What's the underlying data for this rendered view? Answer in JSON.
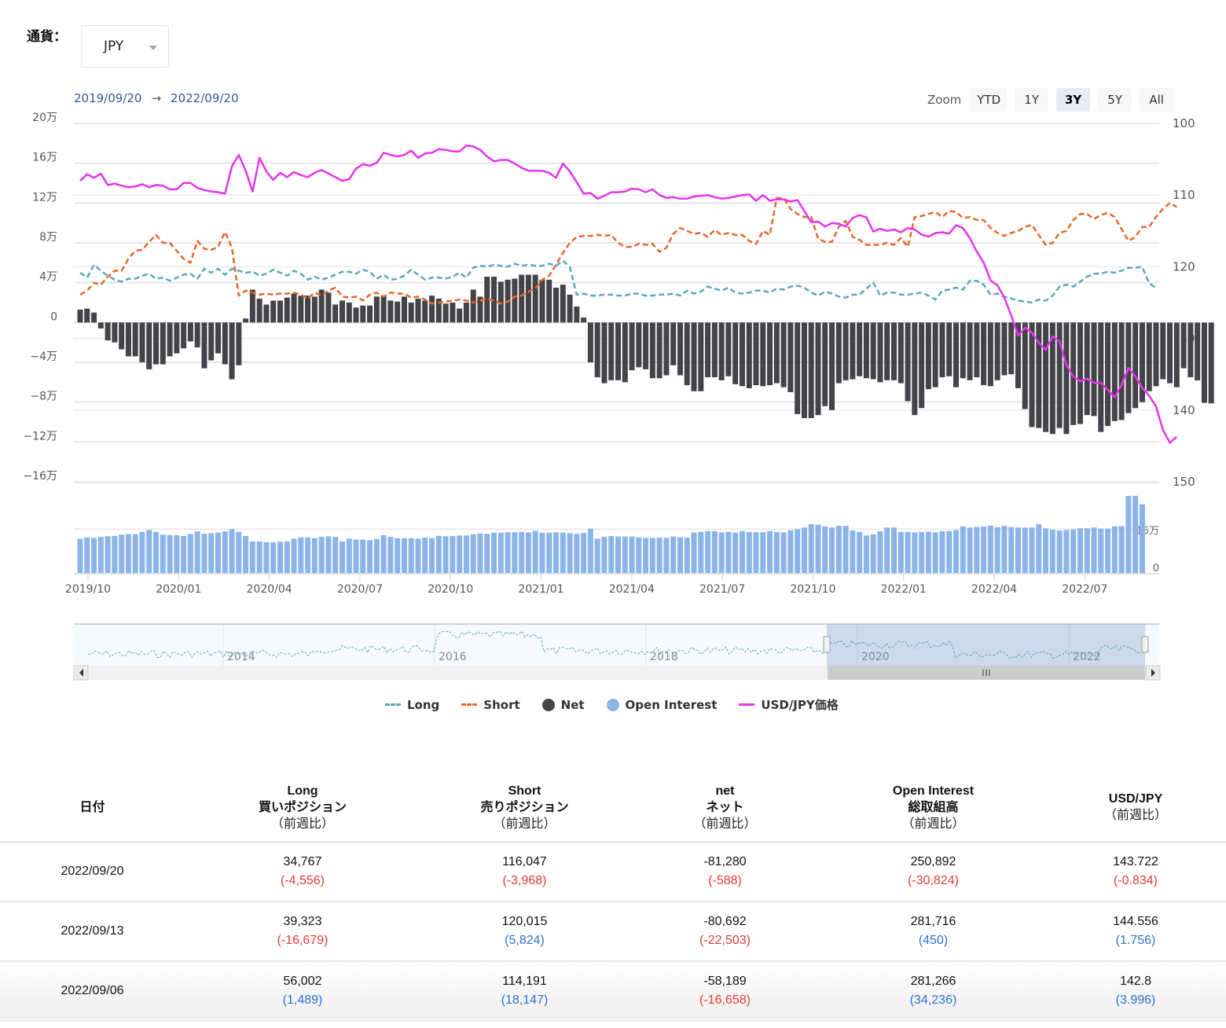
{
  "currency": {
    "label": "通貨：",
    "selected": "JPY"
  },
  "range": {
    "from": "2019/09/20",
    "arrow": "→",
    "to": "2022/09/20"
  },
  "zoom": {
    "label": "Zoom",
    "buttons": [
      "YTD",
      "1Y",
      "3Y",
      "5Y",
      "All"
    ],
    "active": "3Y"
  },
  "legend": [
    {
      "name": "Long",
      "color": "#5aa9bb",
      "symbol": "dash"
    },
    {
      "name": "Short",
      "color": "#e8672c",
      "symbol": "dash"
    },
    {
      "name": "Net",
      "color": "#434348",
      "symbol": "dot"
    },
    {
      "name": "Open Interest",
      "color": "#8bb5e8",
      "symbol": "dot"
    },
    {
      "name": "USD/JPY価格",
      "color": "#e633f0",
      "symbol": "line"
    }
  ],
  "chart_data": {
    "type": "line",
    "title": "",
    "x_start": "2019/09/20",
    "x_end": "2022/09/20",
    "x_interval": "weekly",
    "x_ticks": [
      "2019/10",
      "2020/01",
      "2020/04",
      "2020/07",
      "2020/10",
      "2021/01",
      "2021/04",
      "2021/07",
      "2021/10",
      "2022/01",
      "2022/04",
      "2022/07"
    ],
    "left_axis": {
      "ticks": [
        "20万",
        "16万",
        "12万",
        "8万",
        "4万",
        "0",
        "−4万",
        "−8万",
        "−12万",
        "−16万"
      ],
      "range": [
        -160000,
        200000
      ]
    },
    "right_axis": {
      "ticks": [
        "100",
        "110",
        "120",
        "130",
        "140",
        "150"
      ],
      "range": [
        100,
        150
      ],
      "reversed": true
    },
    "oi_axis": {
      "ticks": [
        "16万",
        "0"
      ],
      "range": [
        0,
        290000
      ]
    },
    "navigator": {
      "labels": [
        "2014",
        "2016",
        "2018",
        "2020",
        "2022"
      ]
    },
    "series": [
      {
        "name": "Long",
        "type": "line",
        "dash": true,
        "axis": "left",
        "values": [
          50000,
          45000,
          58000,
          52000,
          47000,
          43000,
          41000,
          44000,
          44000,
          47000,
          49000,
          44000,
          45000,
          42000,
          45000,
          48000,
          49000,
          44000,
          54000,
          50000,
          54000,
          48000,
          54000,
          52000,
          50000,
          51000,
          47000,
          49000,
          53000,
          50000,
          47000,
          52000,
          49000,
          43000,
          46000,
          43000,
          45000,
          48000,
          51000,
          51000,
          49000,
          53000,
          51000,
          44000,
          48000,
          43000,
          44000,
          47000,
          53000,
          48000,
          43000,
          45000,
          45000,
          44000,
          46000,
          50000,
          45000,
          55000,
          57000,
          56000,
          58000,
          57000,
          56000,
          59000,
          57000,
          58000,
          57000,
          57000,
          59000,
          57000,
          62000,
          56000,
          28000,
          29000,
          27000,
          27000,
          28000,
          28000,
          27000,
          27000,
          29000,
          29000,
          27000,
          27000,
          28000,
          28000,
          29000,
          27000,
          32000,
          29000,
          31000,
          36000,
          34000,
          32000,
          35000,
          30000,
          29000,
          30000,
          32000,
          32000,
          30000,
          34000,
          33000,
          36000,
          37000,
          35000,
          30000,
          27000,
          31000,
          29000,
          26000,
          25000,
          28000,
          28000,
          34000,
          40000,
          27000,
          30000,
          30000,
          28000,
          28000,
          29000,
          30000,
          27000,
          23000,
          32000,
          33000,
          35000,
          33000,
          42000,
          42000,
          38000,
          28000,
          29000,
          26000,
          24000,
          22000,
          21000,
          20000,
          23000,
          22000,
          27000,
          36000,
          38000,
          36000,
          41000,
          46000,
          49000,
          49000,
          51000,
          50000,
          52000,
          55000,
          55000,
          56002,
          39323,
          34767
        ]
      },
      {
        "name": "Short",
        "type": "line",
        "dash": true,
        "axis": "left",
        "values": [
          28000,
          32000,
          40000,
          38000,
          46000,
          52000,
          52000,
          64000,
          72000,
          73000,
          81000,
          88000,
          80000,
          80000,
          72000,
          64000,
          60000,
          82000,
          74000,
          73000,
          76000,
          91000,
          75000,
          27000,
          32000,
          30000,
          28000,
          29000,
          28000,
          29000,
          29000,
          30000,
          28000,
          24000,
          30000,
          27000,
          32000,
          35000,
          26000,
          25000,
          26000,
          22000,
          28000,
          30000,
          26000,
          30000,
          29000,
          29000,
          25000,
          26000,
          23000,
          19000,
          20000,
          21000,
          22000,
          23000,
          22000,
          20000,
          22000,
          24000,
          22000,
          19000,
          21000,
          26000,
          27000,
          31000,
          34000,
          43000,
          47000,
          58000,
          70000,
          80000,
          86000,
          87000,
          87000,
          88000,
          87000,
          88000,
          80000,
          76000,
          76000,
          79000,
          78000,
          79000,
          71000,
          75000,
          89000,
          95000,
          92000,
          89000,
          90000,
          86000,
          93000,
          88000,
          90000,
          88000,
          88000,
          82000,
          79000,
          92000,
          88000,
          125000,
          125000,
          114000,
          109000,
          106000,
          106000,
          84000,
          81000,
          81000,
          96000,
          102000,
          86000,
          83000,
          78000,
          78000,
          78000,
          80000,
          78000,
          85000,
          76000,
          106000,
          107000,
          109000,
          111000,
          106000,
          112000,
          111000,
          105000,
          106000,
          103000,
          103000,
          95000,
          90000,
          87000,
          90000,
          92000,
          96000,
          98000,
          88000,
          78000,
          80000,
          90000,
          92000,
          103000,
          109000,
          109000,
          104000,
          108000,
          110000,
          106000,
          94000,
          82000,
          86000,
          96000,
          96000,
          106000,
          114191,
          120015,
          116047
        ]
      },
      {
        "name": "Net",
        "type": "bar",
        "axis": "left",
        "values": [
          13000,
          14000,
          10000,
          -6000,
          -18000,
          -20000,
          -27000,
          -34000,
          -34000,
          -40000,
          -47000,
          -42000,
          -42000,
          -34000,
          -31000,
          -26000,
          -19000,
          -25000,
          -46000,
          -38000,
          -31000,
          -42000,
          -57000,
          -43000,
          4000,
          33000,
          24000,
          18000,
          22000,
          22000,
          25000,
          29000,
          27000,
          27000,
          26000,
          33000,
          30000,
          18000,
          22000,
          20000,
          15000,
          17000,
          17000,
          26000,
          27000,
          22000,
          21000,
          26000,
          20000,
          24000,
          22000,
          27000,
          24000,
          19000,
          20000,
          14000,
          20000,
          33000,
          26000,
          46000,
          46000,
          41000,
          43000,
          44000,
          48000,
          48000,
          48000,
          43000,
          43000,
          35000,
          38000,
          28000,
          16000,
          5000,
          -40000,
          -55000,
          -61000,
          -58000,
          -58000,
          -60000,
          -48000,
          -45000,
          -47000,
          -56000,
          -56000,
          -53000,
          -43000,
          -53000,
          -63000,
          -69000,
          -69000,
          -55000,
          -55000,
          -58000,
          -54000,
          -62000,
          -64000,
          -66000,
          -63000,
          -64000,
          -63000,
          -61000,
          -65000,
          -70000,
          -92000,
          -96000,
          -96000,
          -93000,
          -84000,
          -88000,
          -61000,
          -58000,
          -57000,
          -54000,
          -56000,
          -57000,
          -60000,
          -58000,
          -58000,
          -61000,
          -79000,
          -93000,
          -86000,
          -67000,
          -65000,
          -55000,
          -54000,
          -65000,
          -56000,
          -58000,
          -55000,
          -63000,
          -64000,
          -58000,
          -53000,
          -52000,
          -66000,
          -87000,
          -105000,
          -106000,
          -110000,
          -112000,
          -106000,
          -112000,
          -103000,
          -102000,
          -93000,
          -94000,
          -110000,
          -104000,
          -99000,
          -98000,
          -91000,
          -86000,
          -80000,
          -69000,
          -64000,
          -57000,
          -61000,
          -65000,
          -46000,
          -55000,
          -58189,
          -80692,
          -81280
        ]
      },
      {
        "name": "Open Interest",
        "type": "bar",
        "axis": "oi",
        "values": [
          125000,
          130000,
          128000,
          132000,
          134000,
          135000,
          140000,
          142000,
          142000,
          150000,
          157000,
          150000,
          140000,
          138000,
          138000,
          135000,
          142000,
          152000,
          143000,
          145000,
          147000,
          152000,
          160000,
          150000,
          135000,
          115000,
          115000,
          112000,
          112000,
          114000,
          115000,
          125000,
          130000,
          130000,
          127000,
          132000,
          134000,
          132000,
          115000,
          125000,
          122000,
          122000,
          120000,
          124000,
          138000,
          132000,
          127000,
          127000,
          127000,
          125000,
          129000,
          127000,
          136000,
          134000,
          135000,
          137000,
          137000,
          141000,
          144000,
          143000,
          147000,
          147000,
          149000,
          149000,
          150000,
          148000,
          154000,
          147000,
          147000,
          148000,
          147000,
          145000,
          143000,
          146000,
          162000,
          125000,
          132000,
          135000,
          133000,
          133000,
          133000,
          130000,
          128000,
          128000,
          129000,
          128000,
          133000,
          131000,
          129000,
          148000,
          150000,
          153000,
          153000,
          148000,
          150000,
          147000,
          153000,
          150000,
          149000,
          149000,
          153000,
          149000,
          148000,
          156000,
          160000,
          166000,
          178000,
          176000,
          170000,
          166000,
          172000,
          172000,
          155000,
          150000,
          137000,
          141000,
          152000,
          166000,
          166000,
          150000,
          150000,
          148000,
          150000,
          151000,
          148000,
          153000,
          153000,
          157000,
          170000,
          166000,
          168000,
          170000,
          173000,
          167000,
          172000,
          168000,
          166000,
          166000,
          166000,
          178000,
          163000,
          158000,
          155000,
          157000,
          159000,
          163000,
          163000,
          166000,
          162000,
          162000,
          170000,
          171000,
          281266,
          281716,
          250892
        ]
      },
      {
        "name": "USD/JPY価格",
        "type": "line",
        "axis": "right",
        "values": [
          108.0,
          107.1,
          107.6,
          107.0,
          108.6,
          108.4,
          108.7,
          108.9,
          108.8,
          108.5,
          108.9,
          108.6,
          108.7,
          109.2,
          109.2,
          108.3,
          108.3,
          109.0,
          109.3,
          109.5,
          109.6,
          109.8,
          106.0,
          104.4,
          106.6,
          109.5,
          104.8,
          106.7,
          107.9,
          106.9,
          107.5,
          106.8,
          107.2,
          107.5,
          106.9,
          106.5,
          107.0,
          107.5,
          108.0,
          107.8,
          106.3,
          105.7,
          105.9,
          105.5,
          104.1,
          104.4,
          104.6,
          104.4,
          103.8,
          104.8,
          104.2,
          104.1,
          103.6,
          103.7,
          103.9,
          103.9,
          103.1,
          103.2,
          103.7,
          104.6,
          105.3,
          105.1,
          105.1,
          105.6,
          106.2,
          106.6,
          106.6,
          106.6,
          106.9,
          107.6,
          105.6,
          106.7,
          108.2,
          109.8,
          109.7,
          110.5,
          110.1,
          109.6,
          109.6,
          109.5,
          109.1,
          109.2,
          109.6,
          109.2,
          110.0,
          110.4,
          110.3,
          110.5,
          110.5,
          110.2,
          110.1,
          110.0,
          110.3,
          110.5,
          110.4,
          110.2,
          110.0,
          109.9,
          110.8,
          110.0,
          110.8,
          110.6,
          110.6,
          110.9,
          110.7,
          112.2,
          113.8,
          113.7,
          114.4,
          113.9,
          114.0,
          114.4,
          113.2,
          112.8,
          113.1,
          115.1,
          114.7,
          115.0,
          114.8,
          115.2,
          114.6,
          114.8,
          115.5,
          115.8,
          115.3,
          115.2,
          115.4,
          114.2,
          114.6,
          116.0,
          117.9,
          119.4,
          121.9,
          122.6,
          124.3,
          126.8,
          129.6,
          128.5,
          129.2,
          130.6,
          131.6,
          129.7,
          130.4,
          133.7,
          135.3,
          136.0,
          135.6,
          136.2,
          136.2,
          137.2,
          138.2,
          136.5,
          134.1,
          135.3,
          136.9,
          138.0,
          139.5,
          142.8,
          144.556,
          143.722
        ]
      }
    ]
  },
  "table": {
    "headers": [
      {
        "line1": "日付",
        "line2": "",
        "line3": ""
      },
      {
        "line1": "Long",
        "line2": "買いポジション",
        "line3": "（前週比）"
      },
      {
        "line1": "Short",
        "line2": "売りポジション",
        "line3": "（前週比）"
      },
      {
        "line1": "net",
        "line2": "ネット",
        "line3": "（前週比）"
      },
      {
        "line1": "Open Interest",
        "line2": "総取組高",
        "line3": "（前週比）"
      },
      {
        "line1": "USD/JPY",
        "line2": "（前週比）",
        "line3": ""
      }
    ],
    "rows": [
      {
        "date": "2022/09/20",
        "cells": [
          {
            "value": "34,767",
            "change": "(-4,556)",
            "sign": "neg"
          },
          {
            "value": "116,047",
            "change": "(-3,968)",
            "sign": "neg"
          },
          {
            "value": "-81,280",
            "change": "(-588)",
            "sign": "neg"
          },
          {
            "value": "250,892",
            "change": "(-30,824)",
            "sign": "neg"
          },
          {
            "value": "143.722",
            "change": "(-0.834)",
            "sign": "neg"
          }
        ]
      },
      {
        "date": "2022/09/13",
        "cells": [
          {
            "value": "39,323",
            "change": "(-16,679)",
            "sign": "neg"
          },
          {
            "value": "120,015",
            "change": "(5,824)",
            "sign": "pos"
          },
          {
            "value": "-80,692",
            "change": "(-22,503)",
            "sign": "neg"
          },
          {
            "value": "281,716",
            "change": "(450)",
            "sign": "pos"
          },
          {
            "value": "144.556",
            "change": "(1.756)",
            "sign": "pos"
          }
        ]
      },
      {
        "date": "2022/09/06",
        "cells": [
          {
            "value": "56,002",
            "change": "(1,489)",
            "sign": "pos"
          },
          {
            "value": "114,191",
            "change": "(18,147)",
            "sign": "pos"
          },
          {
            "value": "-58,189",
            "change": "(-16,658)",
            "sign": "neg"
          },
          {
            "value": "281,266",
            "change": "(34,236)",
            "sign": "pos"
          },
          {
            "value": "142.8",
            "change": "(3.996)",
            "sign": "pos"
          }
        ]
      }
    ]
  }
}
